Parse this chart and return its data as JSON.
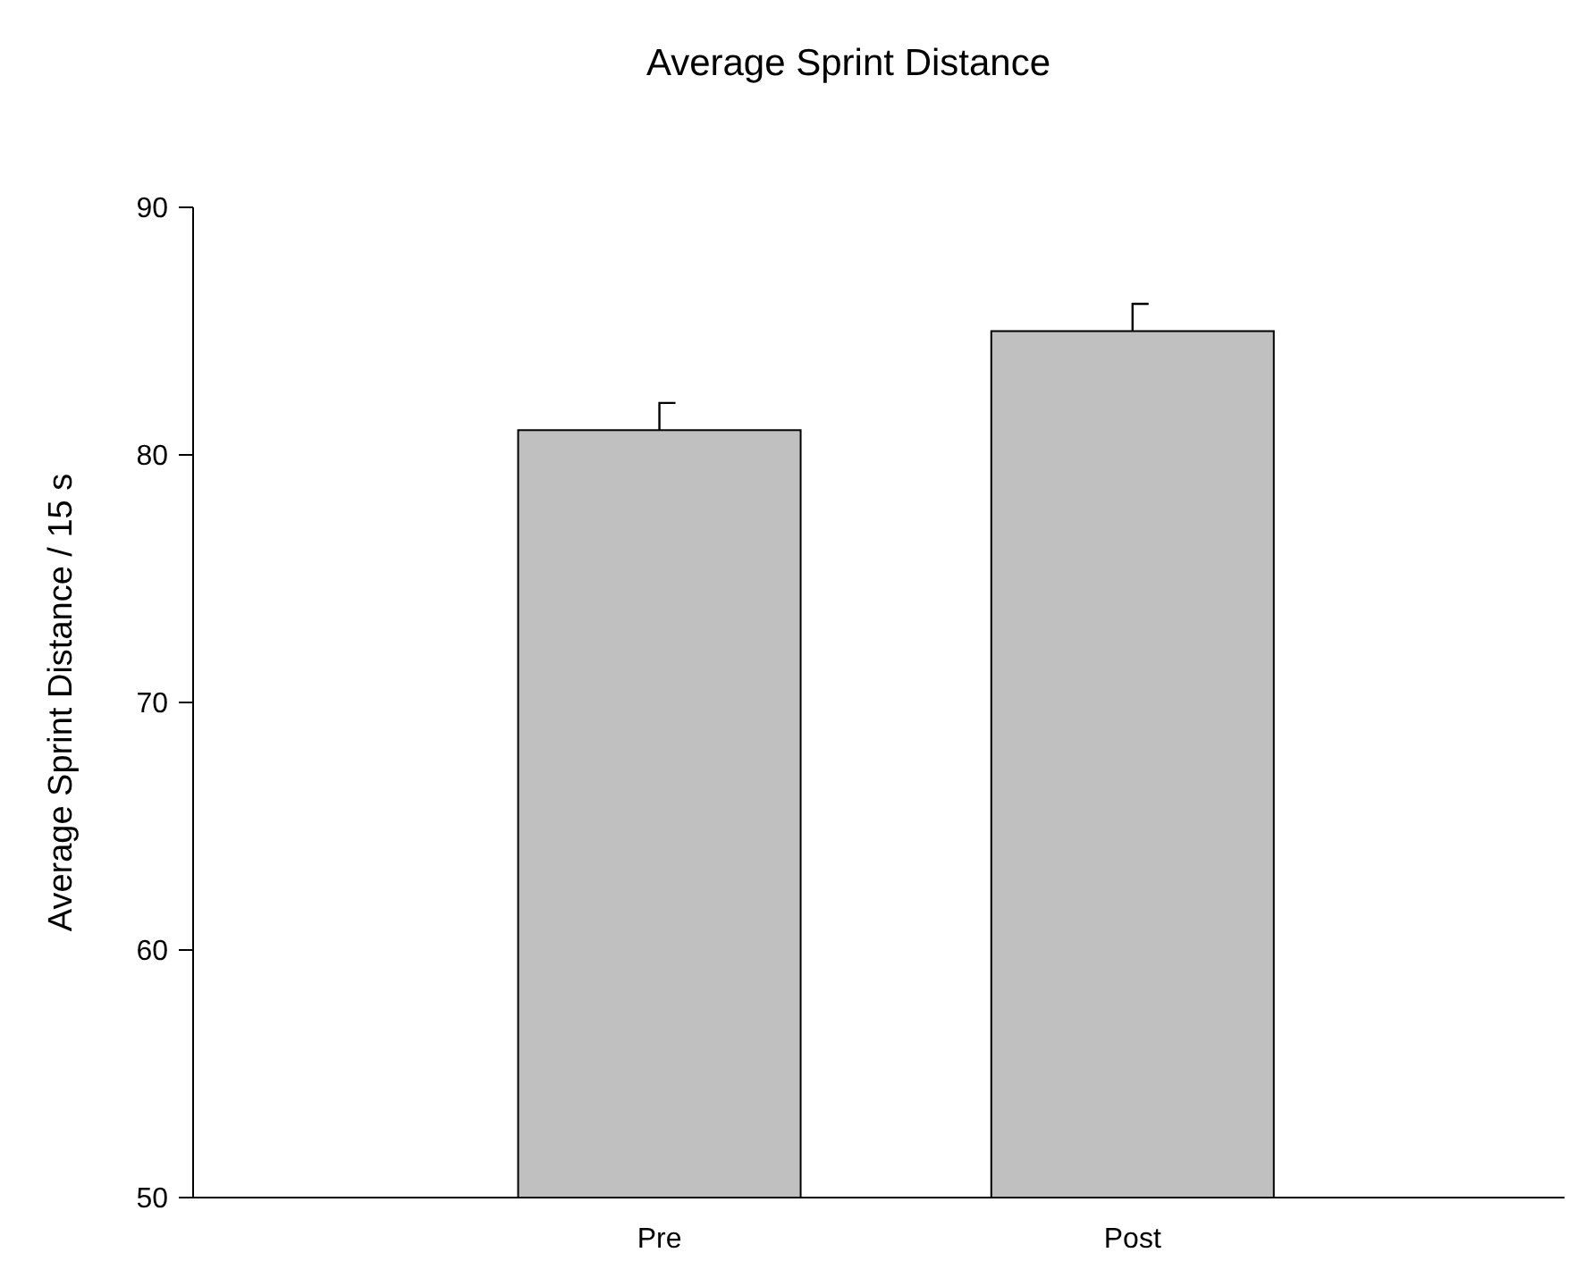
{
  "chart_data": {
    "type": "bar",
    "title": "Average Sprint Distance",
    "ylabel": "Average Sprint Distance / 15 s",
    "categories": [
      "Pre",
      "Post"
    ],
    "values": [
      81,
      85
    ],
    "errors": [
      [
        81,
        82.1
      ],
      [
        85,
        86.1
      ]
    ],
    "color": "#c0c0c0",
    "ylim": [
      50,
      90
    ],
    "yticks": [
      50,
      60,
      70,
      80,
      90
    ]
  }
}
